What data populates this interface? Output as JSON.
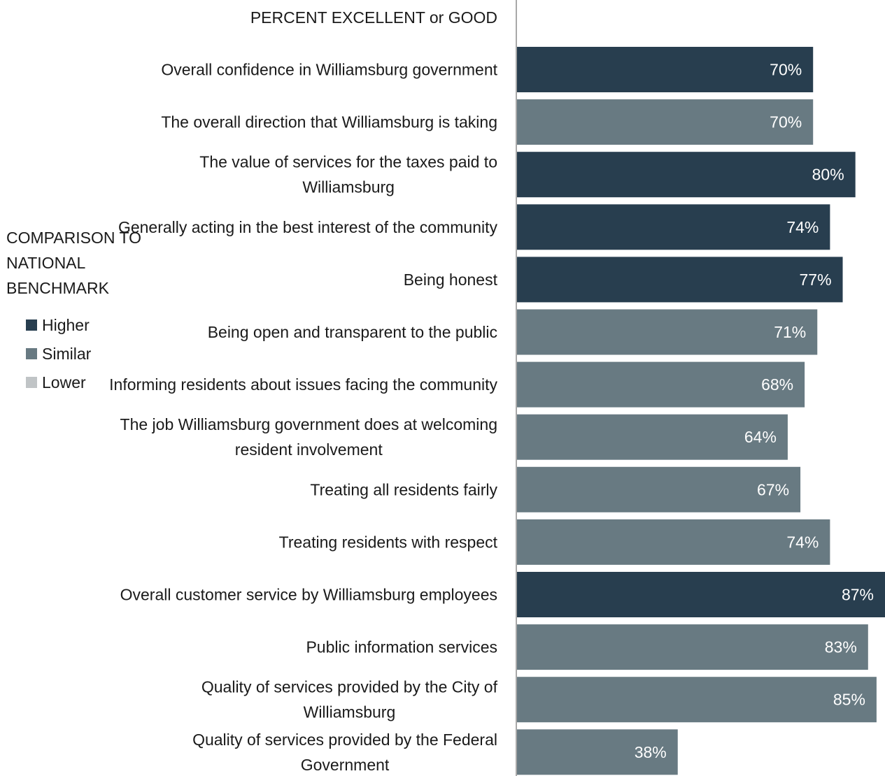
{
  "chart_data": {
    "type": "bar",
    "orientation": "horizontal",
    "title": "PERCENT EXCELLENT or GOOD",
    "categories": [
      "Overall confidence in Williamsburg government",
      "The overall direction that Williamsburg is taking",
      "The value of services for the taxes paid to Williamsburg",
      "Generally acting in the best interest of the community",
      "Being honest",
      "Being open and transparent to the public",
      "Informing residents about issues facing the community",
      "The job Williamsburg government does at welcoming resident involvement",
      "Treating all residents fairly",
      "Treating residents with respect",
      "Overall customer service by Williamsburg employees",
      "Public information services",
      "Quality of services provided by the City of Williamsburg",
      "Quality of services provided by the Federal Government"
    ],
    "values": [
      70,
      70,
      80,
      74,
      77,
      71,
      68,
      64,
      67,
      74,
      87,
      83,
      85,
      38
    ],
    "value_labels": [
      "70%",
      "70%",
      "80%",
      "74%",
      "77%",
      "71%",
      "68%",
      "64%",
      "67%",
      "74%",
      "87%",
      "83%",
      "85%",
      "38%"
    ],
    "comparison": [
      "Higher",
      "Similar",
      "Higher",
      "Higher",
      "Higher",
      "Similar",
      "Similar",
      "Similar",
      "Similar",
      "Similar",
      "Higher",
      "Similar",
      "Similar",
      "Similar"
    ],
    "xlim": [
      0,
      87
    ],
    "grid": false,
    "legend": {
      "title": "COMPARISON TO NATIONAL BENCHMARK",
      "placement": "left",
      "entries": [
        {
          "label": "Higher",
          "color": "#283e4f"
        },
        {
          "label": "Similar",
          "color": "#687a82"
        },
        {
          "label": "Lower",
          "color": "#c0c4c6"
        }
      ]
    }
  }
}
